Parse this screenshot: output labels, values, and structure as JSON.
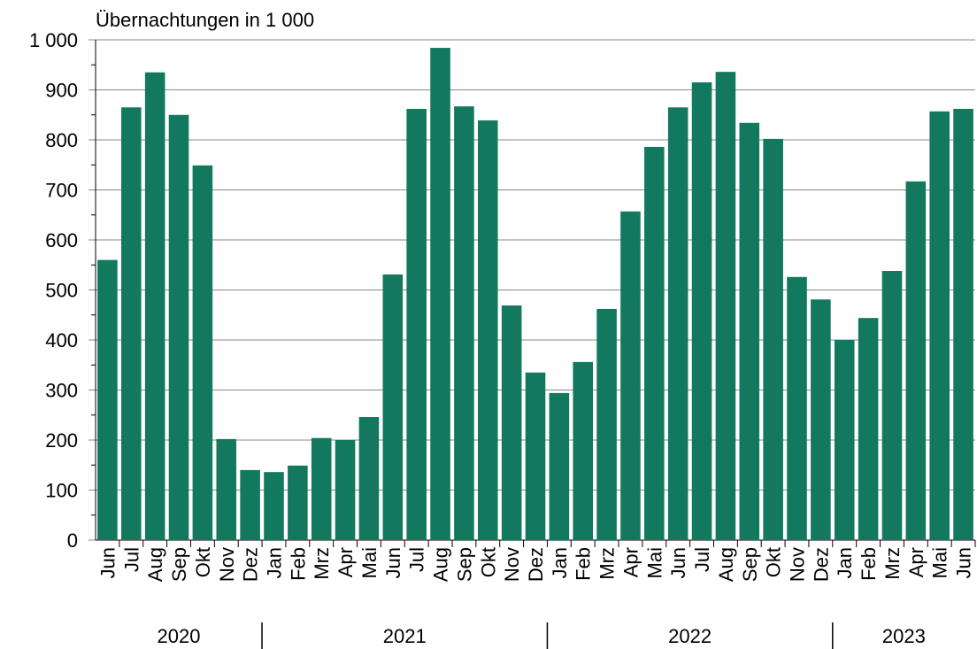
{
  "chart_data": {
    "type": "bar",
    "title": "Übernachtungen in 1 000",
    "categories": [
      "Jun",
      "Jul",
      "Aug",
      "Sep",
      "Okt",
      "Nov",
      "Dez",
      "Jan",
      "Feb",
      "Mrz",
      "Apr",
      "Mai",
      "Jun",
      "Jul",
      "Aug",
      "Sep",
      "Okt",
      "Nov",
      "Dez",
      "Jan",
      "Feb",
      "Mrz",
      "Apr",
      "Mai",
      "Jun",
      "Jul",
      "Aug",
      "Sep",
      "Okt",
      "Nov",
      "Dez",
      "Jan",
      "Feb",
      "Mrz",
      "Apr",
      "Mai",
      "Jun"
    ],
    "x_groups": [
      {
        "label": "2020",
        "span": 7
      },
      {
        "label": "2021",
        "span": 12
      },
      {
        "label": "2022",
        "span": 12
      },
      {
        "label": "2023",
        "span": 6
      }
    ],
    "values": [
      560,
      865,
      935,
      850,
      749,
      202,
      140,
      136,
      149,
      204,
      200,
      246,
      531,
      862,
      984,
      867,
      839,
      469,
      335,
      294,
      356,
      462,
      657,
      786,
      865,
      915,
      936,
      834,
      802,
      526,
      481,
      400,
      444,
      538,
      717,
      857,
      862
    ],
    "color": "#12795f",
    "ylim": [
      0,
      1000
    ],
    "yticks": [
      0,
      100,
      200,
      300,
      400,
      500,
      600,
      700,
      800,
      900,
      {
        "value": 1000,
        "label": "1 000"
      }
    ],
    "grid": true
  }
}
